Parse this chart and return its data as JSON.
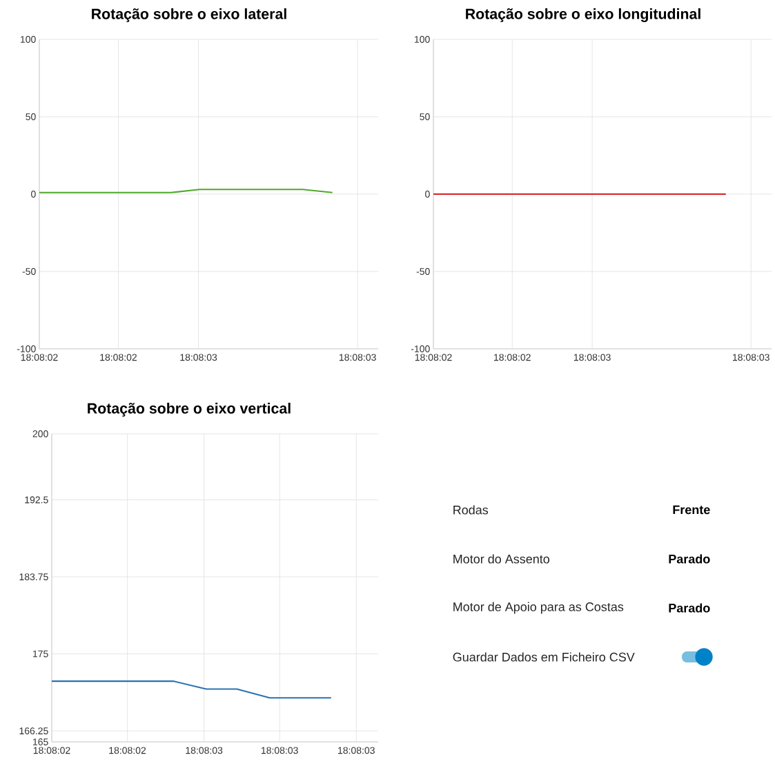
{
  "chart_data": [
    {
      "type": "line",
      "title": "Rotação sobre o eixo lateral",
      "grid": true,
      "x": [
        18.133903,
        18.134018,
        18.134043,
        18.134133,
        18.134159
      ],
      "series": [
        {
          "color": "#4fa82a",
          "values": [
            1,
            1,
            3,
            3,
            1
          ]
        }
      ],
      "xlim": [
        18.133903,
        18.134199
      ],
      "xticks": [
        {
          "value": 18.133903,
          "label": "18:08:02"
        },
        {
          "value": 18.133972,
          "label": "18:08:02"
        },
        {
          "value": 18.134042,
          "label": "18:08:03"
        },
        {
          "value": 18.134181,
          "label": "18:08:03"
        }
      ],
      "ylim": [
        -100,
        100
      ],
      "yticks": [
        -100,
        -50,
        0,
        50,
        100
      ]
    },
    {
      "type": "line",
      "title": "Rotação sobre o eixo longitudinal",
      "grid": true,
      "x": [
        18.133903,
        18.134159
      ],
      "series": [
        {
          "color": "#d71f1f",
          "values": [
            0,
            0
          ]
        }
      ],
      "xlim": [
        18.133903,
        18.134199
      ],
      "xticks": [
        {
          "value": 18.133903,
          "label": "18:08:02"
        },
        {
          "value": 18.133972,
          "label": "18:08:02"
        },
        {
          "value": 18.134042,
          "label": "18:08:03"
        },
        {
          "value": 18.134181,
          "label": "18:08:03"
        }
      ],
      "ylim": [
        -100,
        100
      ],
      "yticks": [
        -100,
        -50,
        0,
        50,
        100
      ]
    },
    {
      "type": "line",
      "title": "Rotação sobre o eixo vertical",
      "grid": true,
      "x": [
        18.133903,
        18.134014,
        18.134044,
        18.134072,
        18.134102,
        18.134158
      ],
      "series": [
        {
          "color": "#2a72b0",
          "values": [
            171.9,
            171.9,
            171.0,
            171.0,
            170.0,
            170.0
          ]
        }
      ],
      "xlim": [
        18.133903,
        18.134201
      ],
      "xticks": [
        {
          "value": 18.133903,
          "label": "18:08:02"
        },
        {
          "value": 18.133972,
          "label": "18:08:02"
        },
        {
          "value": 18.134042,
          "label": "18:08:03"
        },
        {
          "value": 18.134111,
          "label": "18:08:03"
        },
        {
          "value": 18.134181,
          "label": "18:08:03"
        }
      ],
      "ylim": [
        165,
        200
      ],
      "yticks": [
        165,
        166.25,
        175,
        183.75,
        192.5,
        200
      ]
    },
    {
      "type": "other",
      "annotations": [
        "Rodas",
        "Frente",
        "Motor do Assento",
        "Parado",
        "Motor de Apoio para as Costas",
        "Parado",
        "Guardar Dados em Ficheiro CSV"
      ]
    }
  ]
}
